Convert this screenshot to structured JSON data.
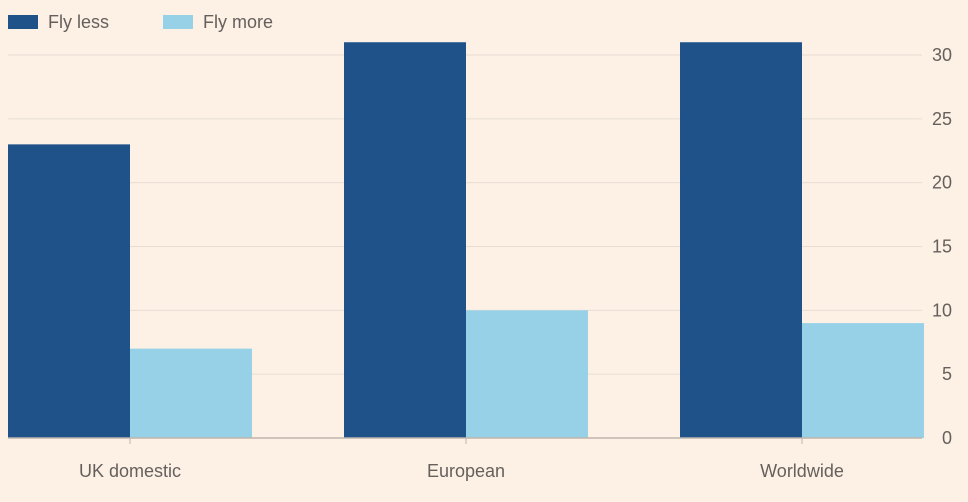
{
  "chart_data": {
    "type": "bar",
    "categories": [
      "UK domestic",
      "European",
      "Worldwide"
    ],
    "series": [
      {
        "name": "Fly less",
        "values": [
          23,
          31,
          31
        ],
        "color": "#1f5289"
      },
      {
        "name": "Fly more",
        "values": [
          7,
          10,
          9
        ],
        "color": "#96d1e7"
      }
    ],
    "ylim": [
      0,
      30
    ],
    "yticks": [
      0,
      5,
      10,
      15,
      20,
      25,
      30
    ],
    "y_axis_position": "right",
    "grid": true,
    "legend": "top-left",
    "title": "",
    "xlabel": "",
    "ylabel": ""
  }
}
